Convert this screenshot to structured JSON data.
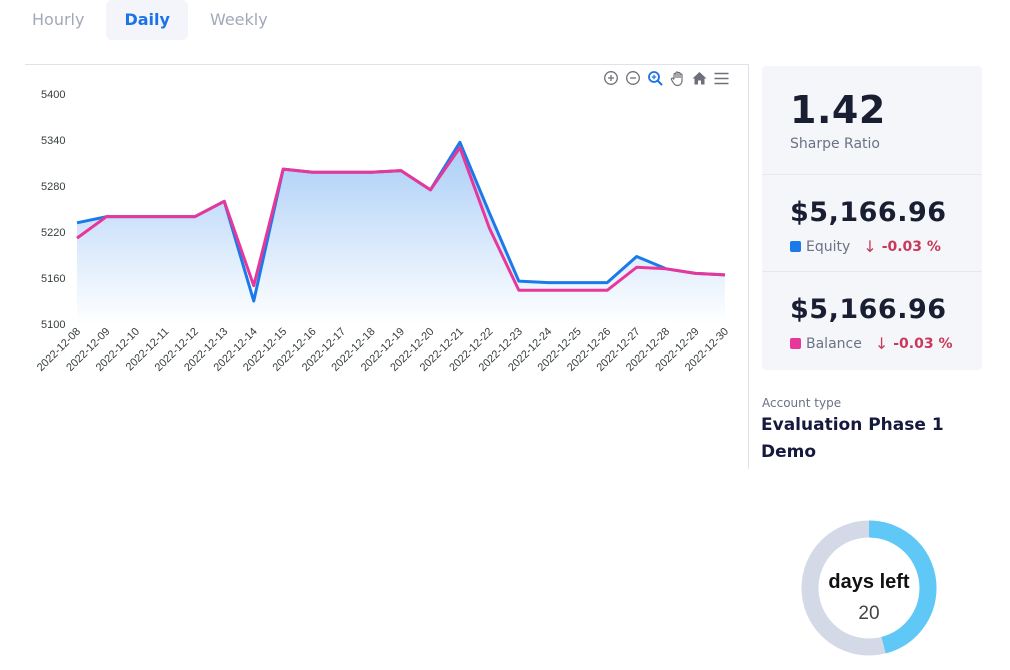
{
  "tabs": [
    {
      "label": "Hourly",
      "active": false
    },
    {
      "label": "Daily",
      "active": true
    },
    {
      "label": "Weekly",
      "active": false
    }
  ],
  "toolbar": {
    "icons": [
      "zoom-in-icon",
      "zoom-out-icon",
      "zoom-selection-icon",
      "pan-hand-icon",
      "home-reset-icon",
      "menu-icon"
    ]
  },
  "chart_data": {
    "type": "area",
    "categories": [
      "2022-12-08",
      "2022-12-09",
      "2022-12-10",
      "2022-12-11",
      "2022-12-12",
      "2022-12-13",
      "2022-12-14",
      "2022-12-15",
      "2022-12-16",
      "2022-12-17",
      "2022-12-18",
      "2022-12-19",
      "2022-12-20",
      "2022-12-21",
      "2022-12-22",
      "2022-12-23",
      "2022-12-24",
      "2022-12-25",
      "2022-12-26",
      "2022-12-27",
      "2022-12-28",
      "2022-12-29",
      "2022-12-30"
    ],
    "series": [
      {
        "name": "Equity",
        "color": "#1a7be8",
        "values": [
          5232,
          5240,
          5240,
          5240,
          5240,
          5260,
          5130,
          5302,
          5298,
          5298,
          5298,
          5300,
          5275,
          5337,
          5245,
          5156,
          5154,
          5154,
          5154,
          5188,
          5172,
          5166,
          5164
        ]
      },
      {
        "name": "Balance",
        "color": "#e8379a",
        "values": [
          5212,
          5240,
          5240,
          5240,
          5240,
          5260,
          5150,
          5302,
          5298,
          5298,
          5298,
          5300,
          5275,
          5330,
          5225,
          5144,
          5144,
          5144,
          5144,
          5174,
          5172,
          5166,
          5164
        ]
      }
    ],
    "yticks": [
      "5400",
      "5340",
      "5280",
      "5220",
      "5160",
      "5100"
    ],
    "ylim": [
      5100,
      5400
    ],
    "title": "",
    "xlabel": "",
    "ylabel": ""
  },
  "stats": {
    "sharpe": {
      "value": "1.42",
      "label": "Sharpe Ratio"
    },
    "equity": {
      "value": "$5,166.96",
      "label": "Equity",
      "arrow": "↓",
      "change": "-0.03 %",
      "color": "#1a7be8"
    },
    "balance": {
      "value": "$5,166.96",
      "label": "Balance",
      "arrow": "↓",
      "change": "-0.03 %",
      "color": "#e8379a"
    }
  },
  "account": {
    "label": "Account type",
    "value": "Evaluation Phase 1 Demo"
  },
  "days": {
    "label": "days left",
    "value": "20",
    "fraction": 0.46,
    "color": "#5fc8f7",
    "track": "#d4d9e8"
  }
}
